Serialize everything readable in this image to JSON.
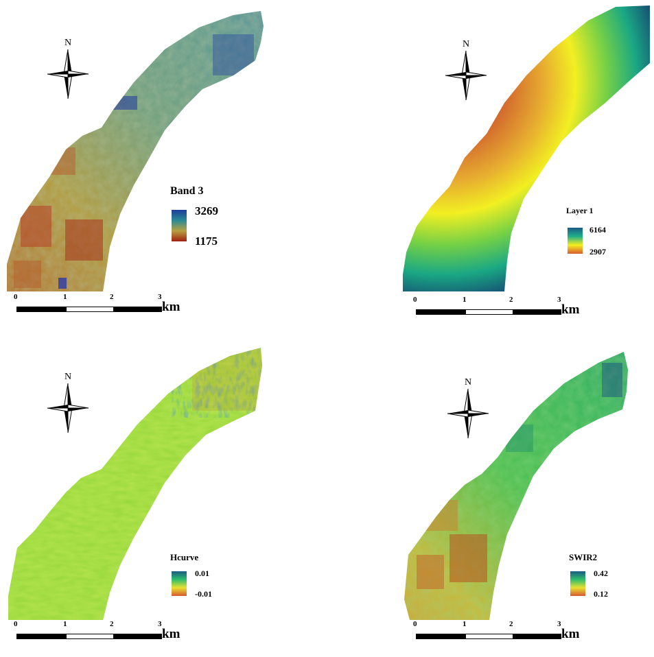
{
  "panels": [
    {
      "legend_title": "Band 3",
      "legend_max": "3269",
      "legend_min": "1175",
      "ramp": [
        "#1e3c9a",
        "#2a8a96",
        "#b8a040",
        "#a02010"
      ],
      "north_label": "N",
      "scale": {
        "ticks": [
          "0",
          "1",
          "2",
          "3"
        ],
        "unit": "km"
      }
    },
    {
      "legend_title": "Layer 1",
      "legend_max": "6164",
      "legend_min": "2907",
      "ramp": [
        "#1b5a86",
        "#1fb08a",
        "#f5ef1e",
        "#d85a30"
      ],
      "north_label": "N",
      "scale": {
        "ticks": [
          "0",
          "1",
          "2",
          "3"
        ],
        "unit": "km"
      }
    },
    {
      "legend_title": "Hcurve",
      "legend_max": "0.01",
      "legend_min": "-0.01",
      "ramp": [
        "#1b5a86",
        "#2dbe6a",
        "#e8e030",
        "#d85a30"
      ],
      "north_label": "N",
      "scale": {
        "ticks": [
          "0",
          "1",
          "2",
          "3"
        ],
        "unit": "km"
      }
    },
    {
      "legend_title": "SWIR2",
      "legend_max": "0.42",
      "legend_min": "0.12",
      "ramp": [
        "#1b5a86",
        "#2dbe6a",
        "#e8e030",
        "#d85a30"
      ],
      "north_label": "N",
      "scale": {
        "ticks": [
          "0",
          "1",
          "2",
          "3"
        ],
        "unit": "km"
      }
    }
  ]
}
